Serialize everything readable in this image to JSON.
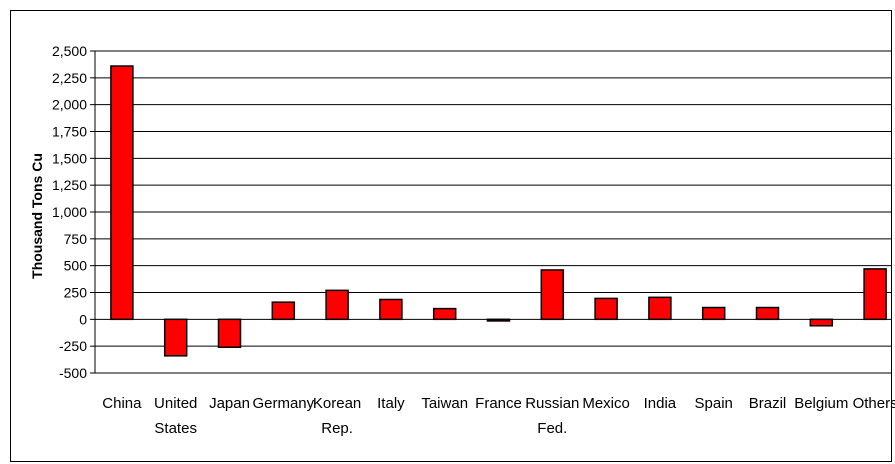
{
  "chart_data": {
    "type": "bar",
    "title": "",
    "xlabel": "",
    "ylabel": "Thousand Tons Cu",
    "ylim": [
      -500,
      2500
    ],
    "yticks": [
      2500,
      2250,
      2000,
      1750,
      1500,
      1250,
      1000,
      750,
      500,
      250,
      0,
      -250,
      -500
    ],
    "ytick_labels": [
      "2,500",
      "2,250",
      "2,000",
      "1,750",
      "1,500",
      "1,250",
      "1,000",
      "750",
      "500",
      "250",
      "0",
      "-250",
      "-500"
    ],
    "categories": [
      "China",
      "United States",
      "Japan",
      "Germany",
      "Korean Rep.",
      "Italy",
      "Taiwan",
      "France",
      "Russian Fed.",
      "Mexico",
      "India",
      "Spain",
      "Brazil",
      "Belgium",
      "Others"
    ],
    "category_lines": [
      [
        "China"
      ],
      [
        "United",
        "States"
      ],
      [
        "Japan"
      ],
      [
        "Germany"
      ],
      [
        "Korean",
        "Rep."
      ],
      [
        "Italy"
      ],
      [
        "Taiwan"
      ],
      [
        "France"
      ],
      [
        "Russian",
        "Fed."
      ],
      [
        "Mexico"
      ],
      [
        "India"
      ],
      [
        "Spain"
      ],
      [
        "Brazil"
      ],
      [
        "Belgium"
      ],
      [
        "Others"
      ]
    ],
    "values": [
      2360,
      -340,
      -260,
      160,
      270,
      185,
      100,
      -15,
      460,
      195,
      205,
      110,
      110,
      -60,
      470
    ],
    "grid": true,
    "bar_color": "#ff0000",
    "bar_edge_color": "#000000"
  }
}
